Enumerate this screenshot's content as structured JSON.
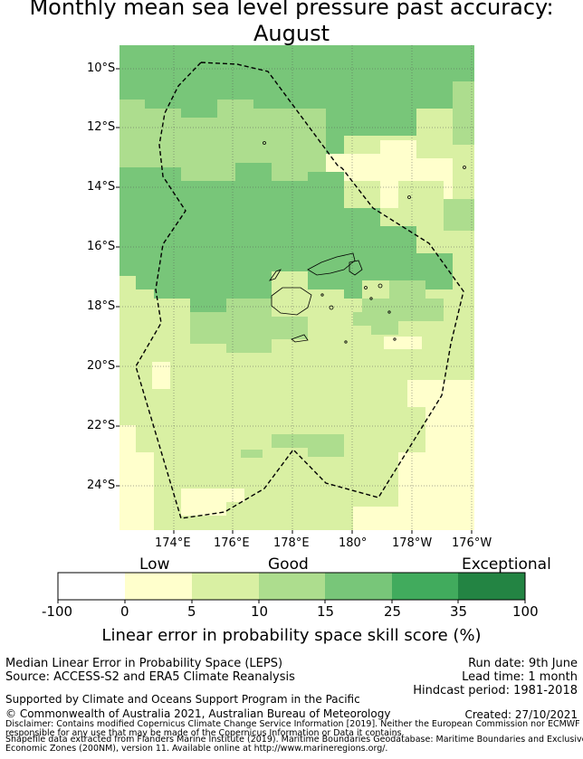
{
  "title": {
    "line1": "Monthly mean sea level pressure past accuracy:",
    "line2": "August"
  },
  "map": {
    "lat_labels": [
      "10°S",
      "12°S",
      "14°S",
      "16°S",
      "18°S",
      "20°S",
      "22°S",
      "24°S"
    ],
    "lon_labels": [
      "174°E",
      "176°E",
      "178°E",
      "180°",
      "178°W",
      "176°W"
    ],
    "colors": {
      "c1": "#ffffcc",
      "c2": "#d9f0a3",
      "c3": "#addd8e",
      "c4": "#78c679",
      "c5": "#41ab5d",
      "c6": "#238443",
      "boundary": "#000000"
    }
  },
  "colorbar": {
    "categories": [
      "Low",
      "Good",
      "Exceptional"
    ],
    "ticks": [
      "-100",
      "0",
      "5",
      "10",
      "15",
      "25",
      "35",
      "100"
    ],
    "label": "Linear error in probability space skill score (%)"
  },
  "info": {
    "method": "Median Linear Error in Probability Space (LEPS)",
    "source": "Source: ACCESS-S2 and ERA5 Climate Reanalysis",
    "run_date": "Run date: 9th June",
    "lead_time": "Lead time: 1 month",
    "hindcast": "Hindcast period: 1981-2018",
    "support": "Supported by Climate and Oceans Support Program in the Pacific",
    "copyright": "© Commonwealth of Australia 2021, Australian Bureau of Meteorology",
    "created": "Created: 27/10/2021",
    "disclaimer1": "Disclaimer: Contains modified Copernicus Climate Change Service Information [2019]. Neither the European Commission nor ECMWF is",
    "disclaimer2": "responsible for any use that may be made of the Copernicus Information or Data it contains.",
    "shapefile1": "Shapefile data extracted from Flanders Marine Institute (2019). Maritime Boundaries Geodatabase: Maritime Boundaries and Exclusive",
    "shapefile2": "Economic Zones (200NM), version 11. Available online at http://www.marineregions.org/."
  }
}
